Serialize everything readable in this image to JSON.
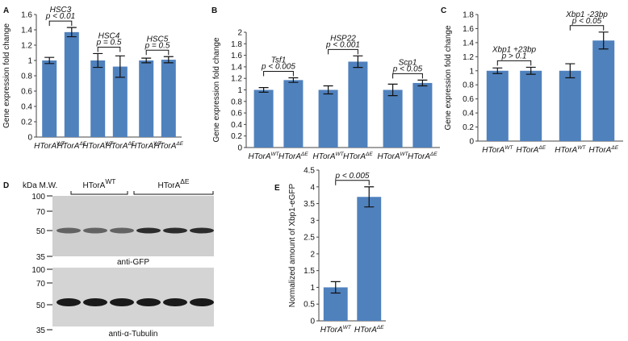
{
  "chart_data": [
    {
      "type": "bar",
      "panel_label": "A",
      "y_label": "Gene expression fold change",
      "color": "#4f81bd",
      "categories": [
        {
          "text": "HTorA",
          "sup": "WT"
        },
        {
          "text": "HTorA",
          "sup": "ΔE"
        },
        {
          "text": "HTorA",
          "sup": "WT"
        },
        {
          "text": "HTorA",
          "sup": "ΔE"
        },
        {
          "text": "HTorA",
          "sup": "WT"
        },
        {
          "text": "HTorA",
          "sup": "ΔE"
        }
      ],
      "values": [
        1.0,
        1.37,
        1.0,
        0.92,
        1.0,
        1.01
      ],
      "errors": [
        0.04,
        0.06,
        0.09,
        0.14,
        0.03,
        0.04
      ],
      "groups": [
        {
          "label": "HSC3",
          "p": "p < 0.01"
        },
        {
          "label": "HSC4",
          "p": "p = 0.5"
        },
        {
          "label": "HSC5",
          "p": "p = 0.5"
        }
      ],
      "ylim": [
        0,
        1.6
      ],
      "yticks": [
        0,
        0.2,
        0.4,
        0.6,
        0.8,
        1,
        1.2,
        1.4,
        1.6
      ]
    },
    {
      "type": "bar",
      "panel_label": "B",
      "y_label": "Gene expression fold change",
      "color": "#4f81bd",
      "categories": [
        {
          "text": "HTorA",
          "sup": "WT"
        },
        {
          "text": "HTorA",
          "sup": "ΔE"
        },
        {
          "text": "HTorA",
          "sup": "WT"
        },
        {
          "text": "HTorA",
          "sup": "ΔE"
        },
        {
          "text": "HTorA",
          "sup": "WT"
        },
        {
          "text": "HTorA",
          "sup": "ΔE"
        }
      ],
      "values": [
        1.0,
        1.17,
        1.0,
        1.49,
        1.0,
        1.12
      ],
      "errors": [
        0.04,
        0.04,
        0.07,
        0.1,
        0.1,
        0.05
      ],
      "groups": [
        {
          "label": "Tsf1",
          "p": "p < 0.005"
        },
        {
          "label": "HSP22",
          "p": "p < 0.001"
        },
        {
          "label": "Scp1",
          "p": "p < 0.05"
        }
      ],
      "ylim": [
        0,
        2
      ],
      "yticks": [
        0,
        0.2,
        0.4,
        0.6,
        0.8,
        1,
        1.2,
        1.4,
        1.6,
        1.8,
        2
      ]
    },
    {
      "type": "bar",
      "panel_label": "C",
      "y_label": "Gene expression fold change",
      "color": "#4f81bd",
      "categories": [
        {
          "text": "HTorA",
          "sup": "WT"
        },
        {
          "text": "HTorA",
          "sup": "ΔE"
        },
        {
          "text": "HTorA",
          "sup": "WT"
        },
        {
          "text": "HTorA",
          "sup": "ΔE"
        }
      ],
      "values": [
        1.0,
        1.0,
        1.0,
        1.43
      ],
      "errors": [
        0.04,
        0.05,
        0.1,
        0.12
      ],
      "groups": [
        {
          "label": "Xbp1 +23bp",
          "p": "p > 0.1"
        },
        {
          "label": "Xbp1  -23bp",
          "p": "p < 0.05"
        }
      ],
      "ylim": [
        0,
        1.8
      ],
      "yticks": [
        0,
        0.2,
        0.4,
        0.6,
        0.8,
        1,
        1.2,
        1.4,
        1.6,
        1.8
      ]
    },
    {
      "type": "bar",
      "panel_label": "E",
      "y_label": "Normalized amount of Xbp1-eGFP",
      "color": "#4f81bd",
      "categories": [
        {
          "text": "HTorA",
          "sup": "WT"
        },
        {
          "text": "HTorA",
          "sup": "ΔE"
        }
      ],
      "values": [
        1.0,
        3.7
      ],
      "errors": [
        0.17,
        0.3
      ],
      "groups": [
        {
          "p": "p < 0.005"
        }
      ],
      "ylim": [
        0,
        4.5
      ],
      "yticks": [
        0,
        0.5,
        1,
        1.5,
        2,
        2.5,
        3,
        3.5,
        4,
        4.5
      ]
    }
  ],
  "blot": {
    "panel_label": "D",
    "mw_label": "kDa M.W.",
    "lanes": [
      {
        "text": "HTorA",
        "sup": "WT"
      },
      {
        "text": "HTorA",
        "sup": "ΔE"
      }
    ],
    "panels": [
      {
        "label": "anti-GFP",
        "markers": [
          "100",
          "70",
          "50",
          "35"
        ]
      },
      {
        "label": "anti-α-Tubulin",
        "markers": [
          "100",
          "70",
          "50",
          "35"
        ]
      }
    ]
  }
}
